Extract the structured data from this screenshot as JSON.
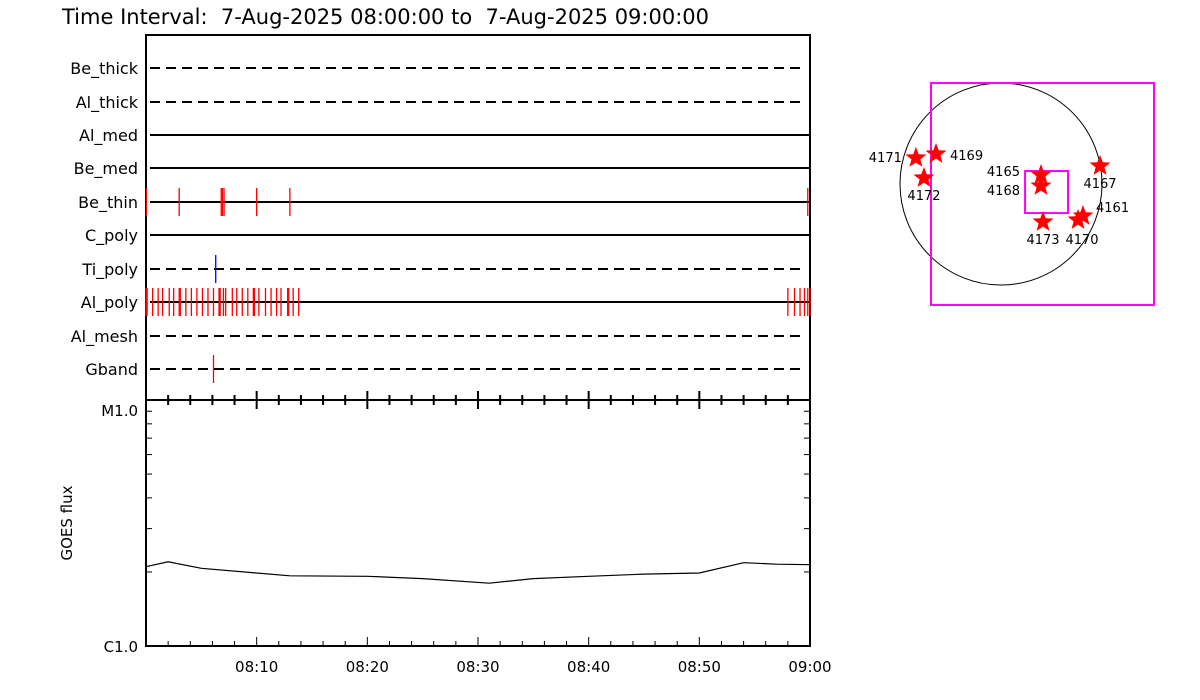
{
  "title": "Time Interval:  7-Aug-2025 08:00:00 to  7-Aug-2025 09:00:00",
  "chart_data": [
    {
      "type": "timeline",
      "x_unit": "minutes after 08:00",
      "xlim": [
        0,
        60
      ],
      "rows": [
        {
          "label": "Be_thick",
          "style": "dashed",
          "events": []
        },
        {
          "label": "Al_thick",
          "style": "dashed",
          "events": []
        },
        {
          "label": "Al_med",
          "style": "solid",
          "events": []
        },
        {
          "label": "Be_med",
          "style": "solid",
          "events": []
        },
        {
          "label": "Be_thin",
          "style": "solid",
          "color": "#ff0000",
          "events": [
            0.03,
            3.0,
            6.8,
            6.9,
            7.05,
            10.0,
            13.0,
            59.8
          ]
        },
        {
          "label": "C_poly",
          "style": "solid",
          "events": []
        },
        {
          "label": "Ti_poly",
          "style": "dashed",
          "color": "#0000ff",
          "events": [
            6.3
          ]
        },
        {
          "label": "Al_poly",
          "style": "solid",
          "color": "#ff0000",
          "events": [
            0.0,
            0.1,
            0.6,
            1.1,
            1.5,
            2.1,
            2.5,
            3.0,
            3.1,
            3.6,
            4.1,
            4.6,
            5.1,
            5.6,
            6.1,
            6.6,
            6.7,
            7.0,
            7.2,
            7.8,
            8.2,
            8.7,
            9.2,
            9.7,
            9.8,
            10.2,
            10.8,
            11.3,
            11.8,
            12.2,
            12.8,
            12.9,
            13.3,
            13.8,
            58.0,
            58.6,
            59.1,
            59.5,
            59.8,
            60.0
          ]
        },
        {
          "label": "Al_mesh",
          "style": "dashed",
          "events": []
        },
        {
          "label": "Gband",
          "style": "dashed",
          "color": "#ff0000",
          "events": [
            6.1
          ]
        }
      ]
    },
    {
      "type": "line",
      "ylabel": "GOES flux",
      "yscale": "log",
      "ylim": [
        1e-06,
        1e-05
      ],
      "ytick_labels": [
        "C1.0",
        "M1.0"
      ],
      "xtick_labels": [
        "08:10",
        "08:20",
        "08:30",
        "08:40",
        "08:50",
        "09:00"
      ],
      "x": [
        0,
        2,
        5,
        10,
        13,
        20,
        25,
        31,
        35,
        40,
        45,
        50,
        54,
        57,
        60
      ],
      "y": [
        2.1e-06,
        2.2e-06,
        2.07e-06,
        1.98e-06,
        1.93e-06,
        1.92e-06,
        1.88e-06,
        1.8e-06,
        1.88e-06,
        1.92e-06,
        1.96e-06,
        1.98e-06,
        2.18e-06,
        2.15e-06,
        2.14e-06
      ]
    },
    {
      "type": "map",
      "units": "arcsec",
      "fov_boxes": [
        {
          "x": [
            -658,
            1438
          ],
          "y": [
            -1137,
            949
          ],
          "color": "#ff00ff"
        },
        {
          "x": [
            226,
            630
          ],
          "y": [
            -273,
            122
          ],
          "color": "#ff00ff"
        }
      ],
      "regions": [
        {
          "label": "4171",
          "x": -800,
          "y": 245
        },
        {
          "label": "4169",
          "x": -611,
          "y": 282
        },
        {
          "label": "4172",
          "x": -724,
          "y": 56
        },
        {
          "label": "4165",
          "x": 376,
          "y": 85
        },
        {
          "label": "4168",
          "x": 376,
          "y": -19
        },
        {
          "label": "4167",
          "x": 931,
          "y": 169
        },
        {
          "label": "4173",
          "x": 395,
          "y": -357
        },
        {
          "label": "4161",
          "x": 771,
          "y": -301
        },
        {
          "label": "4170",
          "x": 724,
          "y": -338
        }
      ]
    }
  ]
}
